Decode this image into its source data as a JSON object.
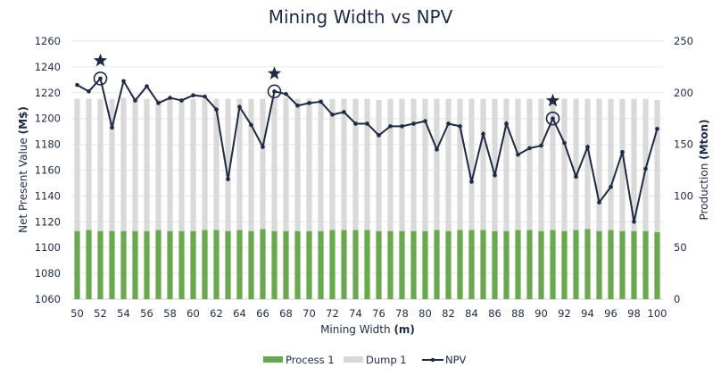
{
  "chart_data": {
    "type": "bar+line",
    "title": "Mining Width vs NPV",
    "xlabel": "Mining Width",
    "xlabel_unit": "(m)",
    "ylabel_left": "Net Present Value",
    "ylabel_left_unit": "(M$)",
    "ylabel_right": "Production",
    "ylabel_right_unit": "(Mton)",
    "ylim_left": [
      1060,
      1260
    ],
    "yticks_left": [
      1060,
      1080,
      1100,
      1120,
      1140,
      1160,
      1180,
      1200,
      1220,
      1240,
      1260
    ],
    "ylim_right": [
      0,
      250
    ],
    "yticks_right": [
      0,
      50,
      100,
      150,
      200,
      250
    ],
    "x": [
      50,
      51,
      52,
      53,
      54,
      55,
      56,
      57,
      58,
      59,
      60,
      61,
      62,
      63,
      64,
      65,
      66,
      67,
      68,
      69,
      70,
      71,
      72,
      73,
      74,
      75,
      76,
      77,
      78,
      79,
      80,
      81,
      82,
      83,
      84,
      85,
      86,
      87,
      88,
      89,
      90,
      91,
      92,
      93,
      94,
      95,
      96,
      97,
      98,
      99,
      100
    ],
    "xticks": [
      50,
      52,
      54,
      56,
      58,
      60,
      62,
      64,
      66,
      68,
      70,
      72,
      74,
      76,
      78,
      80,
      82,
      84,
      86,
      88,
      90,
      92,
      94,
      96,
      98,
      100
    ],
    "grid": true,
    "legend_position": "bottom",
    "series": [
      {
        "name": "Process 1",
        "type": "bar",
        "axis": "right",
        "color": "#6aa84f",
        "values": [
          66,
          67,
          66,
          66,
          66,
          66,
          66,
          67,
          66,
          66,
          66,
          67,
          67,
          66,
          67,
          66,
          68,
          66,
          66,
          66,
          66,
          66,
          67,
          67,
          67,
          67,
          66,
          66,
          66,
          66,
          66,
          67,
          66,
          67,
          67,
          67,
          66,
          66,
          67,
          67,
          66,
          67,
          66,
          67,
          68,
          66,
          67,
          66,
          66,
          66,
          65
        ]
      },
      {
        "name": "Dump 1",
        "type": "bar",
        "axis": "right",
        "color": "#d9d9d9",
        "values": [
          128,
          127,
          128,
          128,
          129,
          128,
          128,
          127,
          128,
          128,
          128,
          127,
          127,
          128,
          127,
          128,
          126,
          128,
          129,
          128,
          128,
          128,
          127,
          127,
          127,
          127,
          127,
          128,
          128,
          128,
          128,
          127,
          128,
          127,
          127,
          127,
          128,
          128,
          127,
          127,
          128,
          127,
          128,
          127,
          126,
          128,
          127,
          128,
          128,
          128,
          128
        ]
      },
      {
        "name": "NPV",
        "type": "line",
        "axis": "left",
        "color": "#1f2a44",
        "values": [
          1226,
          1221,
          1231,
          1193,
          1229,
          1214,
          1225,
          1212,
          1216,
          1214,
          1218,
          1217,
          1207,
          1153,
          1209,
          1195,
          1178,
          1221,
          1219,
          1210,
          1212,
          1213,
          1203,
          1205,
          1196,
          1196,
          1187,
          1194,
          1194,
          1196,
          1198,
          1176,
          1196,
          1194,
          1151,
          1188,
          1156,
          1196,
          1172,
          1177,
          1179,
          1200,
          1181,
          1155,
          1178,
          1135,
          1147,
          1174,
          1120,
          1161,
          1192
        ]
      }
    ],
    "highlighted_points": [
      52,
      67,
      91
    ]
  }
}
